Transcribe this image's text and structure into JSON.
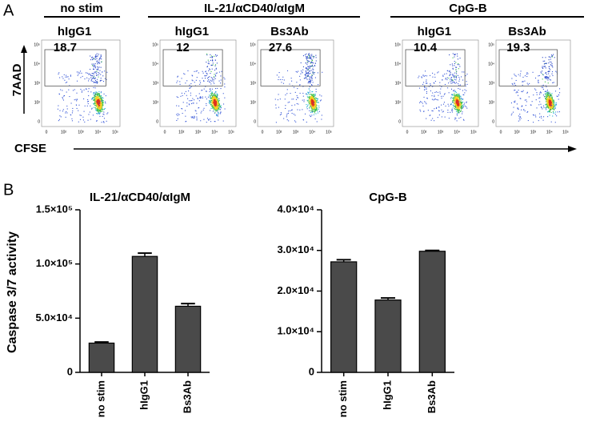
{
  "panels": {
    "a": "A",
    "b": "B"
  },
  "flow": {
    "groups": [
      "no stim",
      "IL-21/αCD40/αIgM",
      "CpG-B"
    ],
    "plots": [
      {
        "label": "hIgG1",
        "gate": "18.7"
      },
      {
        "label": "hIgG1",
        "gate": "12"
      },
      {
        "label": "Bs3Ab",
        "gate": "27.6"
      },
      {
        "label": "hIgG1",
        "gate": "10.4"
      },
      {
        "label": "Bs3Ab",
        "gate": "19.3"
      }
    ],
    "x_axis_label": "CFSE",
    "y_axis_label": "7AAD",
    "x_tick_labels": [
      "0",
      "10²",
      "10³",
      "10⁴",
      "10⁵"
    ],
    "y_tick_labels": [
      "10⁵",
      "10⁴",
      "10³",
      "10²",
      "0"
    ]
  },
  "y_axis_label": "Caspase 3/7 activity",
  "chart_data": [
    {
      "type": "bar",
      "title": "IL-21/αCD40/αIgM",
      "categories": [
        "no stim",
        "hIgG1",
        "Bs3Ab"
      ],
      "values": [
        27000,
        107000,
        61000
      ],
      "errors": [
        1000,
        3000,
        2500
      ],
      "color": "#4a4a4a",
      "ylim": [
        0,
        150000
      ],
      "yticks": [
        0,
        {
          "value": 50000,
          "label": "5.0×10⁴"
        },
        {
          "value": 100000,
          "label": "1.0×10⁵"
        },
        {
          "value": 150000,
          "label": "1.5×10⁵"
        }
      ]
    },
    {
      "type": "bar",
      "title": "CpG-B",
      "categories": [
        "no stim",
        "hIgG1",
        "Bs3Ab"
      ],
      "values": [
        27200,
        17800,
        29800
      ],
      "errors": [
        500,
        500,
        200
      ],
      "color": "#4a4a4a",
      "ylim": [
        0,
        40000
      ],
      "yticks": [
        0,
        {
          "value": 10000,
          "label": "1.0×10⁴"
        },
        {
          "value": 20000,
          "label": "2.0×10⁴"
        },
        {
          "value": 30000,
          "label": "3.0×10⁴"
        },
        {
          "value": 40000,
          "label": "4.0×10⁴"
        }
      ]
    }
  ]
}
